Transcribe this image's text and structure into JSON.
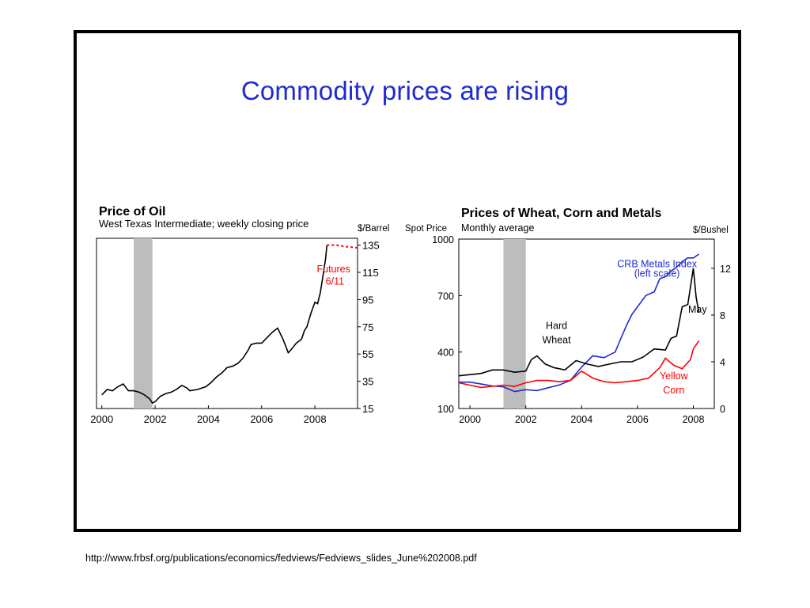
{
  "slide": {
    "title": "Commodity prices are rising",
    "source_url": "http://www.frbsf.org/publications/economics/fedviews/Fedviews_slides_June%202008.pdf"
  },
  "colors": {
    "title": "#1f2bd0",
    "oil_line": "#000000",
    "futures_line": "#ff0000",
    "recession_band": "#bdbdbd",
    "wheat_line": "#000000",
    "corn_line": "#ff0000",
    "metals_line": "#1f2bd0"
  },
  "chart_data": [
    {
      "type": "line",
      "title": "Price of Oil",
      "subtitle": "West Texas Intermediate; weekly closing price",
      "ylabel": "$/Barrel",
      "xlim": [
        1999.8,
        2009.6
      ],
      "ylim": [
        15,
        140
      ],
      "y_ticks": [
        15,
        35,
        55,
        75,
        95,
        115,
        135
      ],
      "x_ticks": [
        2000,
        2002,
        2004,
        2006,
        2008
      ],
      "grid": false,
      "recession_band": [
        2001.2,
        2001.9
      ],
      "series": [
        {
          "name": "",
          "values": [
            [
              2000.0,
              25
            ],
            [
              2000.2,
              29
            ],
            [
              2000.4,
              28
            ],
            [
              2000.6,
              31
            ],
            [
              2000.8,
              33
            ],
            [
              2001.0,
              28
            ],
            [
              2001.2,
              28
            ],
            [
              2001.4,
              27
            ],
            [
              2001.6,
              25
            ],
            [
              2001.8,
              22
            ],
            [
              2001.9,
              19
            ],
            [
              2002.0,
              20
            ],
            [
              2002.2,
              24
            ],
            [
              2002.4,
              26
            ],
            [
              2002.6,
              27
            ],
            [
              2002.8,
              29
            ],
            [
              2003.0,
              32
            ],
            [
              2003.2,
              30
            ],
            [
              2003.3,
              28
            ],
            [
              2003.6,
              29
            ],
            [
              2003.9,
              31
            ],
            [
              2004.1,
              34
            ],
            [
              2004.3,
              38
            ],
            [
              2004.5,
              41
            ],
            [
              2004.7,
              45
            ],
            [
              2004.9,
              46
            ],
            [
              2005.1,
              48
            ],
            [
              2005.3,
              52
            ],
            [
              2005.5,
              58
            ],
            [
              2005.6,
              62
            ],
            [
              2005.8,
              63
            ],
            [
              2006.0,
              63
            ],
            [
              2006.2,
              67
            ],
            [
              2006.4,
              71
            ],
            [
              2006.6,
              74
            ],
            [
              2006.8,
              66
            ],
            [
              2006.9,
              61
            ],
            [
              2007.0,
              56
            ],
            [
              2007.1,
              58
            ],
            [
              2007.3,
              63
            ],
            [
              2007.5,
              66
            ],
            [
              2007.6,
              72
            ],
            [
              2007.7,
              75
            ],
            [
              2007.85,
              85
            ],
            [
              2008.0,
              93
            ],
            [
              2008.1,
              92
            ],
            [
              2008.2,
              100
            ],
            [
              2008.3,
              112
            ],
            [
              2008.4,
              125
            ],
            [
              2008.45,
              135
            ]
          ]
        },
        {
          "name": "Futures 6/11",
          "style": "dashed",
          "values": [
            [
              2008.45,
              135
            ],
            [
              2008.8,
              135
            ],
            [
              2009.1,
              134
            ],
            [
              2009.6,
              133
            ]
          ]
        }
      ],
      "annotations": [
        {
          "text": "Futures",
          "year": 2008.7,
          "value": 115
        },
        {
          "text": "6/11",
          "year": 2008.75,
          "value": 106
        }
      ]
    },
    {
      "type": "line",
      "title": "Prices of Wheat, Corn and Metals",
      "subtitle": "Monthly average",
      "ylabel_left": "Spot Price",
      "ylabel_right": "$/Bushel",
      "xlim": [
        1999.6,
        2008.75
      ],
      "ylim_left": [
        100,
        1000
      ],
      "ylim_right": [
        0,
        14.5
      ],
      "y_ticks_left": [
        100,
        400,
        700,
        1000
      ],
      "y_ticks_right": [
        0,
        4,
        8,
        12
      ],
      "x_ticks": [
        2000,
        2002,
        2004,
        2006,
        2008
      ],
      "grid": false,
      "recession_band": [
        2001.2,
        2002.0
      ],
      "series": [
        {
          "name": "CRB Metals Index (left scale)",
          "axis": "left",
          "values": [
            [
              1999.6,
              240
            ],
            [
              2000.0,
              240
            ],
            [
              2000.4,
              230
            ],
            [
              2000.8,
              220
            ],
            [
              2001.2,
              215
            ],
            [
              2001.6,
              190
            ],
            [
              2002.0,
              200
            ],
            [
              2002.4,
              195
            ],
            [
              2002.8,
              210
            ],
            [
              2003.2,
              225
            ],
            [
              2003.6,
              250
            ],
            [
              2004.0,
              320
            ],
            [
              2004.4,
              380
            ],
            [
              2004.8,
              370
            ],
            [
              2005.2,
              400
            ],
            [
              2005.4,
              470
            ],
            [
              2005.6,
              540
            ],
            [
              2005.8,
              600
            ],
            [
              2006.0,
              640
            ],
            [
              2006.3,
              700
            ],
            [
              2006.6,
              720
            ],
            [
              2006.8,
              790
            ],
            [
              2007.0,
              800
            ],
            [
              2007.2,
              830
            ],
            [
              2007.4,
              850
            ],
            [
              2007.6,
              880
            ],
            [
              2007.8,
              900
            ],
            [
              2008.0,
              900
            ],
            [
              2008.2,
              920
            ]
          ]
        },
        {
          "name": "Hard Wheat",
          "axis": "right",
          "values": [
            [
              1999.6,
              2.8
            ],
            [
              2000.0,
              2.9
            ],
            [
              2000.4,
              3.0
            ],
            [
              2000.8,
              3.3
            ],
            [
              2001.2,
              3.3
            ],
            [
              2001.6,
              3.1
            ],
            [
              2002.0,
              3.2
            ],
            [
              2002.2,
              4.2
            ],
            [
              2002.4,
              4.5
            ],
            [
              2002.7,
              3.8
            ],
            [
              2003.0,
              3.5
            ],
            [
              2003.4,
              3.3
            ],
            [
              2003.8,
              4.1
            ],
            [
              2004.2,
              3.8
            ],
            [
              2004.6,
              3.6
            ],
            [
              2005.0,
              3.8
            ],
            [
              2005.4,
              4.0
            ],
            [
              2005.8,
              4.0
            ],
            [
              2006.2,
              4.4
            ],
            [
              2006.6,
              5.1
            ],
            [
              2007.0,
              5.0
            ],
            [
              2007.2,
              6.0
            ],
            [
              2007.4,
              6.2
            ],
            [
              2007.6,
              8.7
            ],
            [
              2007.8,
              8.9
            ],
            [
              2008.0,
              12.0
            ],
            [
              2008.1,
              9.5
            ],
            [
              2008.2,
              8.2
            ]
          ]
        },
        {
          "name": "Yellow Corn",
          "axis": "right",
          "values": [
            [
              1999.6,
              2.2
            ],
            [
              2000.0,
              2.0
            ],
            [
              2000.4,
              1.8
            ],
            [
              2000.8,
              1.9
            ],
            [
              2001.2,
              2.0
            ],
            [
              2001.6,
              1.9
            ],
            [
              2002.0,
              2.2
            ],
            [
              2002.4,
              2.4
            ],
            [
              2002.8,
              2.4
            ],
            [
              2003.2,
              2.3
            ],
            [
              2003.6,
              2.4
            ],
            [
              2004.0,
              3.2
            ],
            [
              2004.4,
              2.6
            ],
            [
              2004.8,
              2.3
            ],
            [
              2005.2,
              2.2
            ],
            [
              2005.6,
              2.3
            ],
            [
              2006.0,
              2.4
            ],
            [
              2006.4,
              2.6
            ],
            [
              2006.8,
              3.5
            ],
            [
              2007.0,
              4.3
            ],
            [
              2007.3,
              3.7
            ],
            [
              2007.6,
              3.4
            ],
            [
              2007.9,
              4.2
            ],
            [
              2008.0,
              5.1
            ],
            [
              2008.2,
              5.8
            ]
          ]
        }
      ],
      "annotations": [
        {
          "text": "CRB Metals Index",
          "year": 2006.7,
          "value_left": 850
        },
        {
          "text": "(left scale)",
          "year": 2006.7,
          "value_left": 800
        },
        {
          "text": "Hard",
          "year": 2003.1,
          "value_right": 6.8
        },
        {
          "text": "Wheat",
          "year": 2003.1,
          "value_right": 5.6
        },
        {
          "text": "Yellow",
          "year": 2007.3,
          "value_right": 2.5
        },
        {
          "text": "Corn",
          "year": 2007.3,
          "value_right": 1.3
        },
        {
          "text": "May",
          "year": 2008.15,
          "value_right": 8.2
        }
      ]
    }
  ]
}
